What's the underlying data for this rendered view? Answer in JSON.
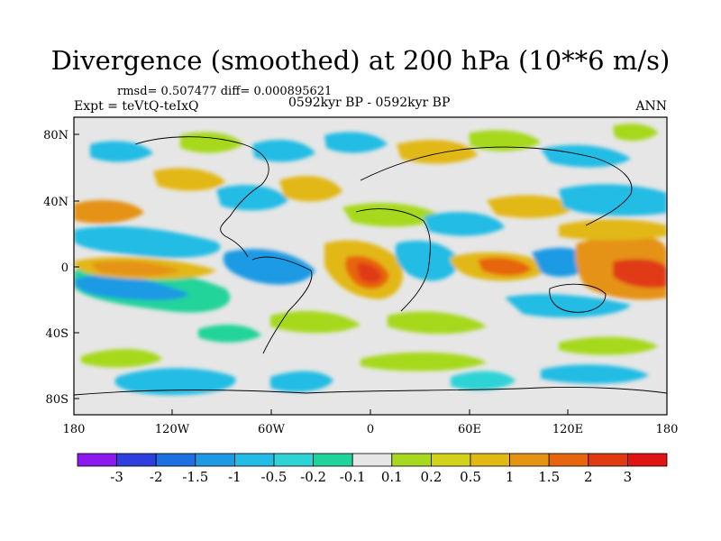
{
  "title": "Divergence (smoothed) at 200 hPa (10**6 m/s)",
  "stats_line": "rmsd= 0.507477 diff= 0.000895621",
  "experiment": "Expt = teVtQ-teIxQ",
  "period": "0592kyr BP - 0592kyr BP",
  "season": "ANN",
  "lat_labels": [
    "80N",
    "40N",
    "0",
    "40S",
    "80S"
  ],
  "lon_labels": [
    "180",
    "120W",
    "60W",
    "0",
    "60E",
    "120E",
    "180"
  ],
  "colorbar": {
    "levels": [
      "-3",
      "-2",
      "-1.5",
      "-1",
      "-0.5",
      "-0.2",
      "-0.1",
      "0.1",
      "0.2",
      "0.5",
      "1",
      "1.5",
      "2",
      "3"
    ],
    "colors": [
      "#8c1aef",
      "#2f3fdd",
      "#1e6fe0",
      "#1e9ae4",
      "#22bce4",
      "#2ed3d6",
      "#20d39a",
      "#e6e6e6",
      "#a6d91f",
      "#d2d21a",
      "#e2b815",
      "#e59313",
      "#e7650f",
      "#e03a12",
      "#e01414"
    ]
  }
}
